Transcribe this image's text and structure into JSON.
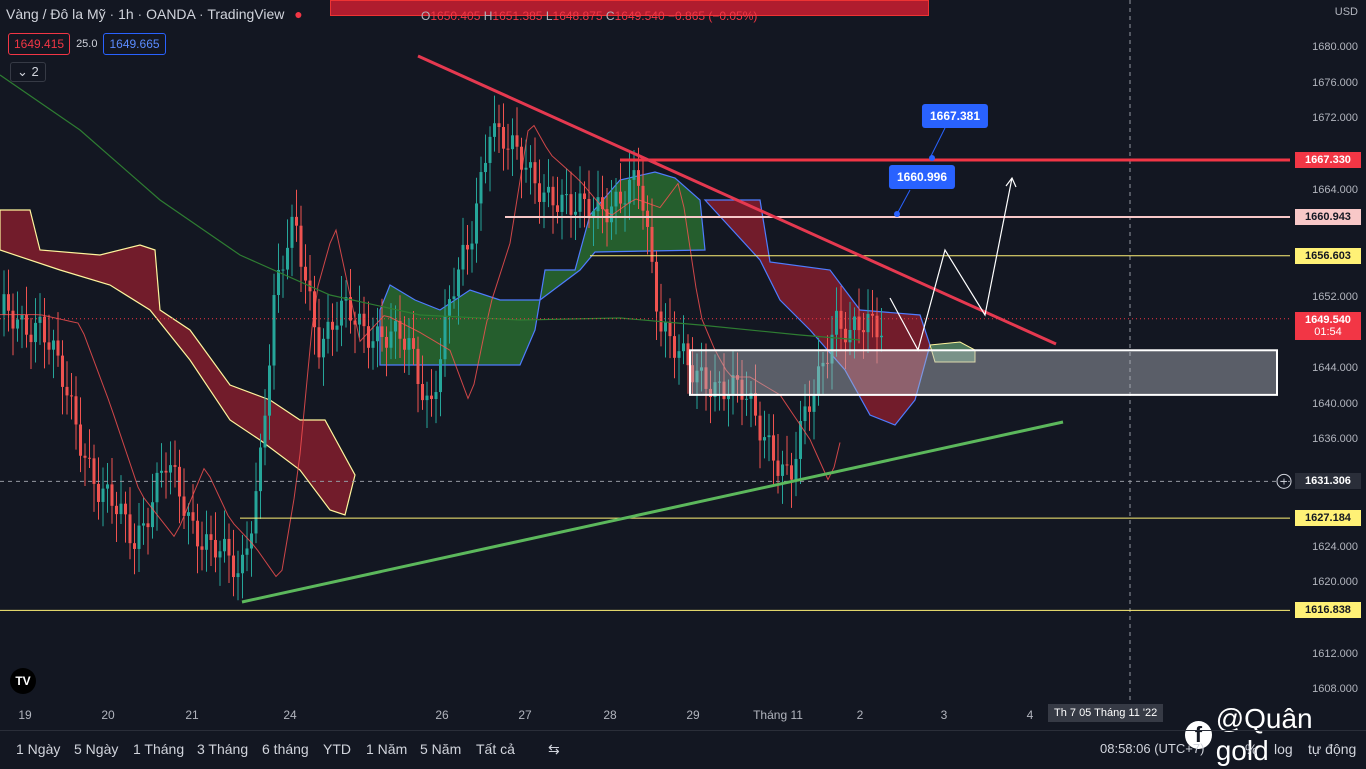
{
  "header": {
    "symbol": "Vàng / Đô la Mỹ",
    "timeframe": "1h",
    "broker": "OANDA",
    "platform": "TradingView",
    "ohlc": {
      "o_label": "O",
      "o": "1650.405",
      "h_label": "H",
      "h": "1651.385",
      "l_label": "L",
      "l": "1648.875",
      "c_label": "C",
      "c": "1649.540",
      "chg": "−0.865 (−0.05%)"
    }
  },
  "quotes": {
    "sell": "1649.415",
    "spread": "25.0",
    "buy": "1649.665"
  },
  "indicator_toggle": "2",
  "price_axis": {
    "currency": "USD",
    "ticks": [
      "1680.000",
      "1676.000",
      "1672.000",
      "1664.000",
      "1652.000",
      "1644.000",
      "1640.000",
      "1636.000",
      "1624.000",
      "1620.000",
      "1612.000",
      "1608.000"
    ]
  },
  "price_tags": [
    {
      "value": "1667.330",
      "color": "#f23645",
      "text_color": "#ffffff"
    },
    {
      "value": "1660.943",
      "color": "#f8c8c8",
      "text_color": "#131722"
    },
    {
      "value": "1656.603",
      "color": "#fff176",
      "text_color": "#131722"
    },
    {
      "value": "1649.540",
      "sub": "01:54",
      "color": "#f23645",
      "text_color": "#ffffff"
    },
    {
      "value": "1631.306",
      "color": "#2a2e39",
      "text_color": "#ffffff"
    },
    {
      "value": "1627.184",
      "color": "#fff176",
      "text_color": "#131722"
    },
    {
      "value": "1616.838",
      "color": "#fff176",
      "text_color": "#131722"
    }
  ],
  "callouts": [
    {
      "value": "1667.381"
    },
    {
      "value": "1660.996"
    }
  ],
  "time_axis": {
    "labels": [
      "19",
      "20",
      "21",
      "24",
      "26",
      "27",
      "28",
      "29",
      "Tháng 11",
      "2",
      "3",
      "4"
    ]
  },
  "crosshair_time": "Th 7 05 Tháng 11 '22",
  "ranges": [
    "1 Ngày",
    "5 Ngày",
    "1 Tháng",
    "3 Tháng",
    "6 tháng",
    "YTD",
    "1 Năm",
    "5 Năm",
    "Tất cả"
  ],
  "status": {
    "clock": "08:58:06 (UTC+7)",
    "percent": "%",
    "log": "log",
    "auto": "tự động"
  },
  "watermark": "@Quân gold",
  "chart_data": {
    "type": "candlestick",
    "x_labels": [
      "19",
      "20",
      "21",
      "24",
      "26",
      "27",
      "28",
      "29",
      "Tháng 11",
      "2",
      "3",
      "4"
    ],
    "ylim": [
      1606,
      1683
    ],
    "horizontal_levels": [
      1667.33,
      1660.943,
      1656.603,
      1627.184,
      1616.838
    ],
    "current_price": 1649.54,
    "crosshair_price": 1631.306,
    "zone": {
      "from": 1641.0,
      "to": 1646.0
    },
    "grid": false
  },
  "colors": {
    "bg": "#131722",
    "up": "#26a69a",
    "down": "#ef5350",
    "accent": "#2962ff"
  }
}
